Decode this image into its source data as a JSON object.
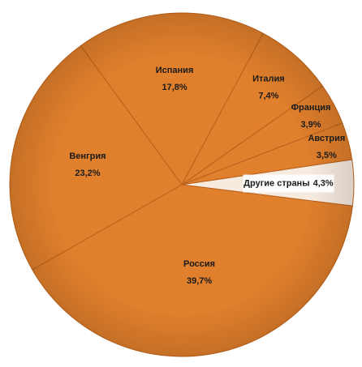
{
  "chart_data": {
    "type": "pie",
    "categories": [
      "Испания",
      "Италия",
      "Франция",
      "Австрия",
      "Другие страны",
      "Россия",
      "Венгрия"
    ],
    "values": [
      17.8,
      7.4,
      3.9,
      3.5,
      4.3,
      39.7,
      23.2
    ],
    "value_labels": [
      "17,8%",
      "7,4%",
      "3,9%",
      "3,5%",
      "4,3%",
      "39,7%",
      "23,2%"
    ],
    "colors": [
      "#e07f2c",
      "#e07f2c",
      "#e07f2c",
      "#e07f2c",
      "#f7ebe0",
      "#e07f2c",
      "#e07f2c"
    ]
  }
}
